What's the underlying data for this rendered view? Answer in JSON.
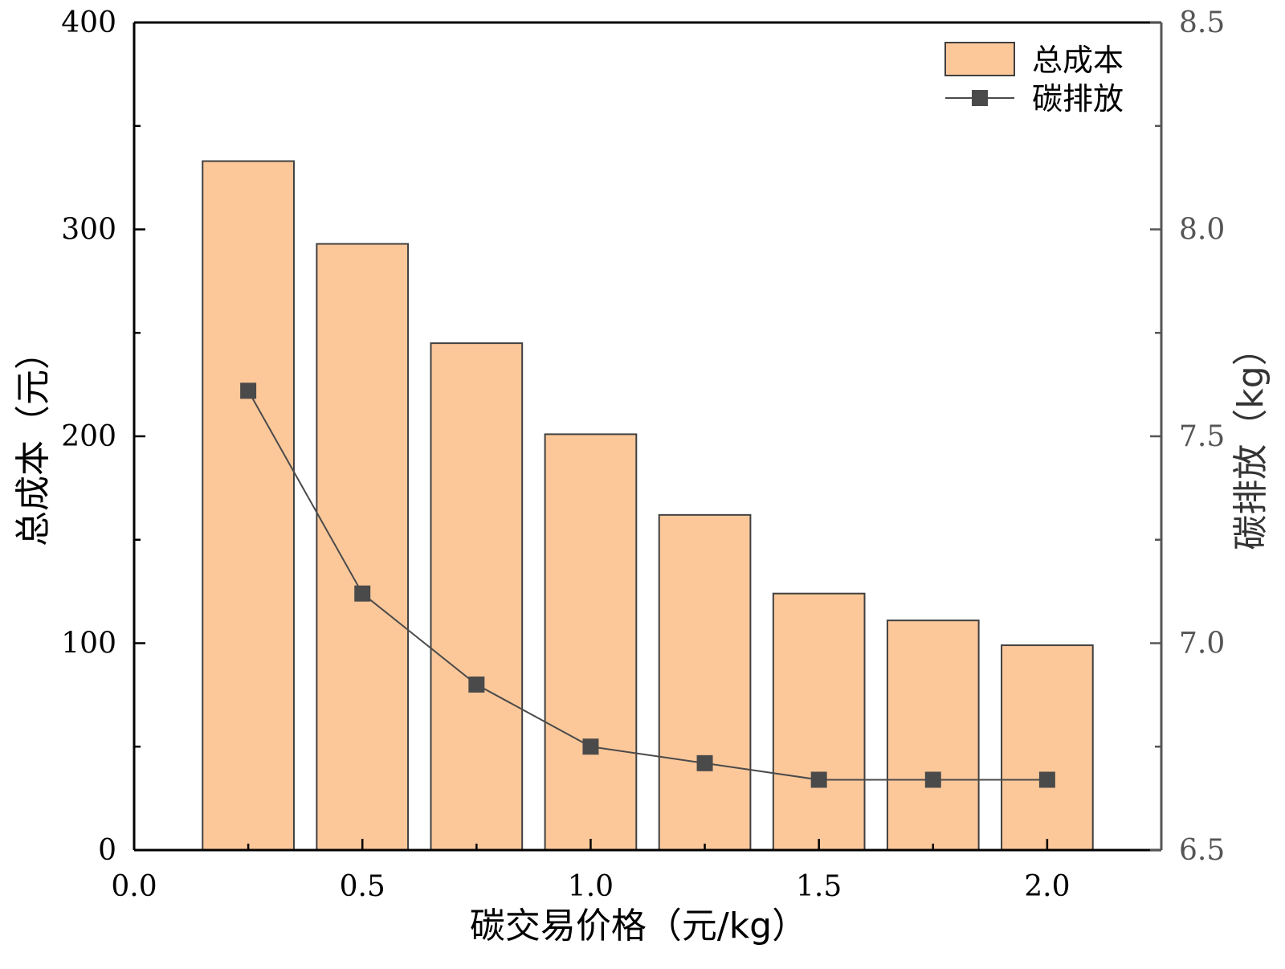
{
  "chart_data": {
    "type": "bar+line",
    "x": [
      0.25,
      0.5,
      0.75,
      1.0,
      1.25,
      1.5,
      1.75,
      2.0
    ],
    "series": [
      {
        "name": "总成本",
        "type": "bar",
        "axis": "left",
        "values": [
          333,
          293,
          245,
          201,
          162,
          124,
          111,
          99
        ],
        "color": "#FCC89A",
        "edge_color": "#404040"
      },
      {
        "name": "碳排放",
        "type": "line",
        "axis": "right",
        "values": [
          7.61,
          7.12,
          6.9,
          6.75,
          6.71,
          6.67,
          6.67,
          6.67
        ],
        "color": "#4a4a4a",
        "marker": "square"
      }
    ],
    "xlabel": "碳交易价格（元/kg）",
    "ylabel_left": "总成本（元）",
    "ylabel_right": "碳排放（kg）",
    "xlim": [
      0,
      2.25
    ],
    "ylim_left": [
      0,
      400
    ],
    "ylim_right": [
      6.5,
      8.5
    ],
    "xticks": [
      "0.0",
      "0.5",
      "1.0",
      "1.5",
      "2.0"
    ],
    "yticks_left": [
      "0",
      "100",
      "200",
      "300",
      "400"
    ],
    "yticks_right": [
      "6.5",
      "7.0",
      "7.5",
      "8.0",
      "8.5"
    ],
    "grid": false,
    "legend": "top-right",
    "right_axis_color": "#555555"
  }
}
